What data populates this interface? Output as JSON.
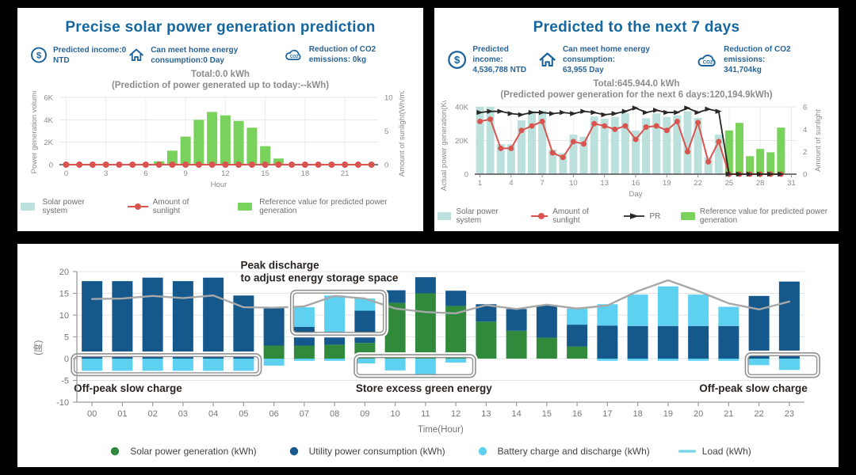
{
  "colors": {
    "title_blue": "#15679e",
    "icon_blue": "#1d639c",
    "stat_text": "#2a6496",
    "teal_bar": "#bce1dd",
    "green_bar": "#79d25b",
    "red": "#d9534f",
    "pr_black": "#2a2624",
    "utility_blue": "#15588c",
    "solar_green": "#318a3c",
    "battery_cyan": "#5ed0f0",
    "load_gray": "#a8a8a8",
    "load_legend": "#7ed7e8",
    "annotation_text": "#2b2420",
    "box_stroke": "#909090"
  },
  "panels": {
    "today": {
      "title": "Precise solar power generation prediction",
      "stats": [
        {
          "icon": "dollar-icon",
          "label": "Predicted income:0 NTD"
        },
        {
          "icon": "home-icon",
          "label": "Can meet home energy consumption:0 Day"
        },
        {
          "icon": "co2-cloud-icon",
          "label": "Reduction of CO2 emissions: 0kg"
        }
      ]
    },
    "week": {
      "title": "Predicted to the next 7 days",
      "stats": [
        {
          "icon": "dollar-icon",
          "label": "Predicted income:",
          "value": "4,536,788 NTD"
        },
        {
          "icon": "home-icon",
          "label": "Can meet home energy consumption:",
          "value": "63,955 Day"
        },
        {
          "icon": "co2-cloud-icon",
          "label": "Reduction of CO2 emissions:",
          "value": "341,704kg"
        }
      ]
    }
  },
  "chart_data": [
    {
      "id": "today",
      "type": "bar",
      "title": "Total:0.0 kWh",
      "subtitle": "(Prediction of power generated up to today:--kWh)",
      "xlabel": "Hour",
      "ylabel_left": "Power generation volume",
      "ylabel_right": "Amount of sunlight(Wh/m2)",
      "categories": [
        0,
        1,
        2,
        3,
        4,
        5,
        6,
        7,
        8,
        9,
        10,
        11,
        12,
        13,
        14,
        15,
        16,
        17,
        18,
        19,
        20,
        21,
        22,
        23
      ],
      "x_ticks": [
        0,
        3,
        6,
        9,
        12,
        15,
        18,
        21
      ],
      "ylim_left": [
        0,
        6000
      ],
      "yticks_left": [
        {
          "v": 0,
          "t": "0"
        },
        {
          "v": 2000,
          "t": "2K"
        },
        {
          "v": 4000,
          "t": "4K"
        },
        {
          "v": 6000,
          "t": "6K"
        }
      ],
      "ylim_right": [
        0,
        10
      ],
      "yticks_right": [
        {
          "v": 0,
          "t": "0"
        },
        {
          "v": 5,
          "t": "5"
        },
        {
          "v": 10,
          "t": "10"
        }
      ],
      "grid": true,
      "legend_position": "bottom",
      "series": [
        {
          "name": "Solar power system",
          "kind": "bar",
          "axis": "left",
          "color": "#bce1dd",
          "legend": "square",
          "values": [
            0,
            0,
            0,
            0,
            0,
            0,
            0,
            0,
            0,
            0,
            0,
            0,
            0,
            0,
            0,
            0,
            0,
            0,
            0,
            0,
            0,
            0,
            0,
            0
          ]
        },
        {
          "name": "Amount of sunlight",
          "kind": "dotline",
          "axis": "right",
          "color": "#d9534f",
          "legend": "dotline",
          "values": [
            0,
            0,
            0,
            0,
            0,
            0,
            0,
            0,
            0,
            0,
            0,
            0,
            0,
            0,
            0,
            0,
            0,
            0,
            0,
            0,
            0,
            0,
            0,
            0
          ]
        },
        {
          "name": "Reference value for predicted power generation",
          "kind": "bar",
          "axis": "left",
          "color": "#79d25b",
          "legend": "square",
          "values": [
            0,
            0,
            0,
            0,
            0,
            0,
            0,
            300,
            1250,
            2500,
            4000,
            4700,
            4400,
            3900,
            3300,
            1650,
            550,
            0,
            0,
            0,
            0,
            0,
            0,
            0
          ]
        }
      ]
    },
    {
      "id": "week",
      "type": "bar",
      "title": "Total:645.944.0 kWh",
      "subtitle": "(Predicted power generation for the next 6 days:120,194.9kWh)",
      "xlabel": "Day",
      "ylabel_left": "Actual power generation(Kwh)",
      "ylabel_right": "Amount of sunlight",
      "categories": [
        1,
        2,
        3,
        4,
        5,
        6,
        7,
        8,
        9,
        10,
        11,
        12,
        13,
        14,
        15,
        16,
        17,
        18,
        19,
        20,
        21,
        22,
        23,
        24,
        25,
        26,
        27,
        28,
        29,
        30,
        31
      ],
      "x_ticks": [
        1,
        4,
        7,
        10,
        13,
        16,
        19,
        22,
        25,
        28,
        31
      ],
      "ylim_left": [
        0,
        40000
      ],
      "yticks_left": [
        {
          "v": 0,
          "t": "0"
        },
        {
          "v": 20000,
          "t": "20K"
        },
        {
          "v": 40000,
          "t": "40K"
        }
      ],
      "ylim_right": [
        0,
        6
      ],
      "yticks_right": [
        {
          "v": 0,
          "t": "0"
        },
        {
          "v": 2,
          "t": "2"
        },
        {
          "v": 4,
          "t": "4"
        },
        {
          "v": 6,
          "t": "6"
        }
      ],
      "grid": true,
      "legend_position": "bottom",
      "series": [
        {
          "name": "Solar power system",
          "kind": "bar",
          "axis": "left",
          "color": "#bce1dd",
          "legend": "square",
          "values": [
            40000,
            40000,
            17800,
            17800,
            32000,
            37700,
            37700,
            14600,
            12500,
            23500,
            22200,
            34300,
            32900,
            34000,
            36400,
            25900,
            33200,
            36100,
            34000,
            35000,
            37400,
            33500,
            10000,
            23500,
            0,
            0,
            0,
            0,
            0,
            0,
            null
          ]
        },
        {
          "name": "Amount of sunlight",
          "kind": "dotline",
          "axis": "right",
          "color": "#d9534f",
          "legend": "dotline",
          "values": [
            4.7,
            4.9,
            2.3,
            2.3,
            3.9,
            4.3,
            4.7,
            1.9,
            1.5,
            2.9,
            2.7,
            4.5,
            4.3,
            4.0,
            4.3,
            3.1,
            4.2,
            4.3,
            3.9,
            4.7,
            2.0,
            4.6,
            1.1,
            2.9,
            0,
            0,
            0,
            0,
            0,
            0,
            null
          ]
        },
        {
          "name": "PR",
          "kind": "arrowline",
          "axis": "right",
          "color": "#2a2624",
          "legend": "arrowline",
          "values": [
            5.5,
            5.6,
            5.6,
            5.4,
            5.3,
            5.5,
            5.5,
            5.4,
            5.5,
            5.4,
            5.6,
            5.5,
            5.3,
            5.4,
            5.6,
            5.9,
            5.5,
            5.7,
            5.5,
            5.5,
            5.9,
            5.5,
            5.8,
            5.6,
            0,
            0,
            0,
            0,
            0,
            0,
            null
          ]
        },
        {
          "name": "Reference value for predicted power generation",
          "kind": "bar",
          "axis": "left",
          "color": "#79d25b",
          "legend": "square",
          "values": [
            0,
            0,
            0,
            0,
            0,
            0,
            0,
            0,
            0,
            0,
            0,
            0,
            0,
            0,
            0,
            0,
            0,
            0,
            0,
            0,
            0,
            0,
            0,
            0,
            26000,
            30500,
            10700,
            15000,
            13000,
            27700,
            null
          ]
        }
      ]
    },
    {
      "id": "daily",
      "type": "stacked-bar-line",
      "xlabel": "Time(Hour)",
      "ylabel_left": "(度)",
      "categories": [
        "00",
        "01",
        "02",
        "03",
        "04",
        "05",
        "06",
        "07",
        "08",
        "09",
        "10",
        "11",
        "12",
        "13",
        "14",
        "15",
        "16",
        "17",
        "18",
        "19",
        "20",
        "21",
        "22",
        "23"
      ],
      "ylim_left": [
        -10,
        20
      ],
      "yticks_left": [
        {
          "v": 20,
          "t": "20"
        },
        {
          "v": 15,
          "t": "15"
        },
        {
          "v": 10,
          "t": "10"
        },
        {
          "v": 5,
          "t": "5"
        },
        {
          "v": 0,
          "t": "0"
        },
        {
          "v": -5,
          "t": "-5"
        },
        {
          "v": -10,
          "t": "-10"
        }
      ],
      "grid": true,
      "series": [
        {
          "name": "Solar power generation (kWh)",
          "kind": "stack",
          "color": "#318a3c",
          "legend": "dot",
          "values": [
            0,
            0,
            0,
            0,
            0,
            0,
            3.0,
            3.0,
            3.2,
            3.6,
            12.8,
            15.0,
            12.1,
            8.5,
            6.4,
            4.8,
            2.8,
            0,
            0,
            0,
            0,
            0,
            0,
            0
          ]
        },
        {
          "name": "Utility power consumption (kWh)",
          "kind": "stack",
          "color": "#15588c",
          "legend": "dot",
          "values": [
            17.8,
            17.8,
            18.6,
            17.8,
            18.6,
            14.5,
            8.8,
            4.3,
            3.0,
            7.4,
            2.9,
            3.7,
            3.5,
            4.0,
            5.0,
            7.5,
            5.0,
            7.6,
            7.5,
            7.5,
            7.5,
            7.5,
            14.4,
            17.7
          ]
        },
        {
          "name": "Battery charge and discharge (kWh)",
          "kind": "stack",
          "color": "#5ed0f0",
          "legend": "dot",
          "values": [
            0,
            0,
            0,
            0,
            0,
            0,
            0,
            4.5,
            8.3,
            2.8,
            0,
            0,
            0,
            0,
            0,
            0,
            3.7,
            4.9,
            7.2,
            9.1,
            7.2,
            4.4,
            0,
            0
          ],
          "values_neg": [
            -2.8,
            -2.8,
            -2.8,
            -2.8,
            -2.8,
            -2.8,
            -1.6,
            -0.5,
            -0.5,
            -1.1,
            -2.7,
            -3.6,
            -0.9,
            0,
            0,
            0,
            0,
            -0.5,
            -0.5,
            -0.5,
            -0.5,
            -0.5,
            -1.5,
            -2.6
          ]
        },
        {
          "name": "Load (kWh)",
          "kind": "line",
          "color": "#a8a8a8",
          "legend": "line",
          "legend_color": "#7ed7e8",
          "values": [
            13.7,
            13.8,
            14.4,
            13.9,
            14.5,
            11.8,
            11.7,
            12.0,
            14.4,
            13.8,
            11.5,
            10.7,
            10.4,
            12.3,
            11.4,
            12.4,
            11.5,
            12.2,
            15.5,
            18.0,
            15.5,
            12.7,
            11.3,
            13.1
          ]
        }
      ],
      "annotations": {
        "boxes": [
          {
            "from": -0.68,
            "to": 5.58,
            "v_top": 1.1,
            "v_bot": -3.9
          },
          {
            "from": 6.55,
            "to": 9.7,
            "v_top": 15.7,
            "v_bot": 5.4
          },
          {
            "from": 8.65,
            "to": 12.65,
            "v_top": 0.9,
            "v_bot": -4.3
          },
          {
            "from": 21.55,
            "to": 24.0,
            "v_top": 1.3,
            "v_bot": -4.3
          }
        ],
        "labels": [
          {
            "lines": [
              "Peak discharge",
              "to adjust energy storage space"
            ],
            "hour": 4.9,
            "v": 20.6,
            "anchor": "start"
          },
          {
            "lines": [
              "Off-peak slow charge"
            ],
            "hour": -0.6,
            "v": -7.6,
            "anchor": "start"
          },
          {
            "lines": [
              "Store excess green energy"
            ],
            "hour": 8.7,
            "v": -7.6,
            "anchor": "start"
          },
          {
            "lines": [
              "Off-peak slow charge"
            ],
            "hour": 23.6,
            "v": -7.6,
            "anchor": "end"
          }
        ]
      }
    }
  ]
}
